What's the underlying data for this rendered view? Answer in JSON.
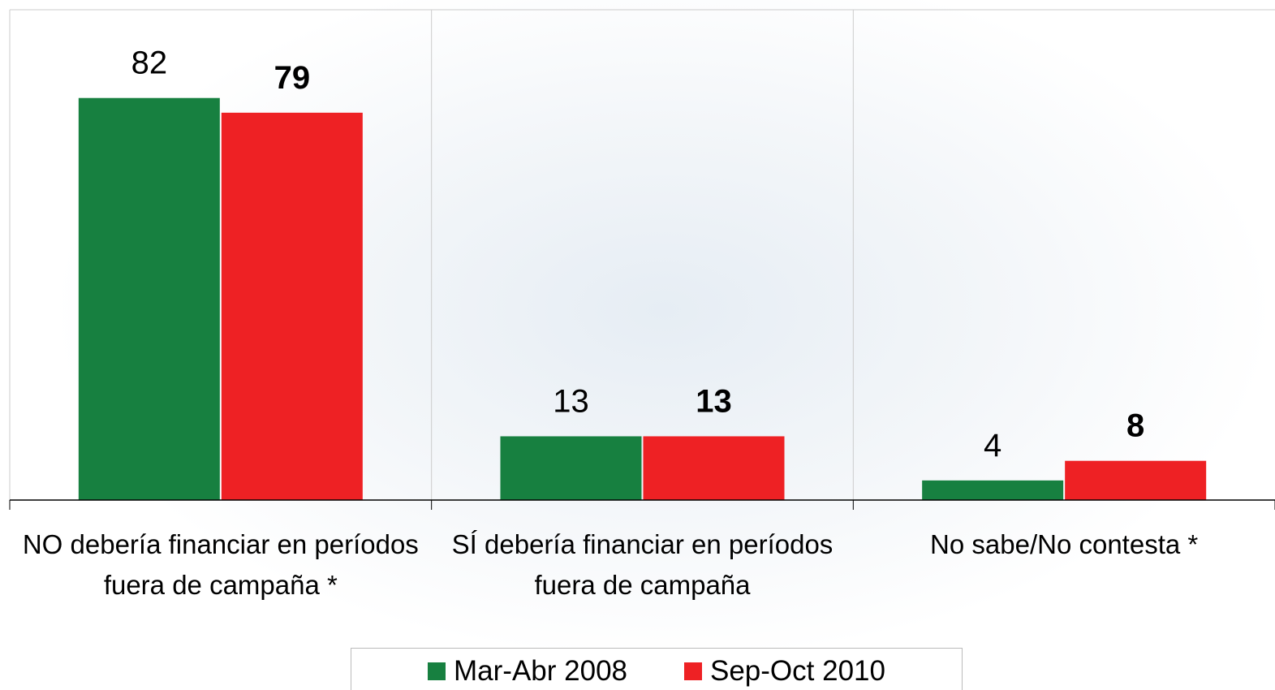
{
  "chart_data": {
    "type": "bar",
    "categories": [
      "NO debería financiar en períodos fuera de campaña *",
      "SÍ debería financiar en períodos fuera de campaña",
      "No sabe/No contesta *"
    ],
    "series": [
      {
        "name": "Mar-Abr 2008",
        "color": "#178040",
        "values": [
          82,
          13,
          4
        ]
      },
      {
        "name": "Sep-Oct 2010",
        "color": "#ee2124",
        "values": [
          79,
          13,
          8
        ]
      }
    ],
    "ylim": [
      0,
      100
    ]
  }
}
